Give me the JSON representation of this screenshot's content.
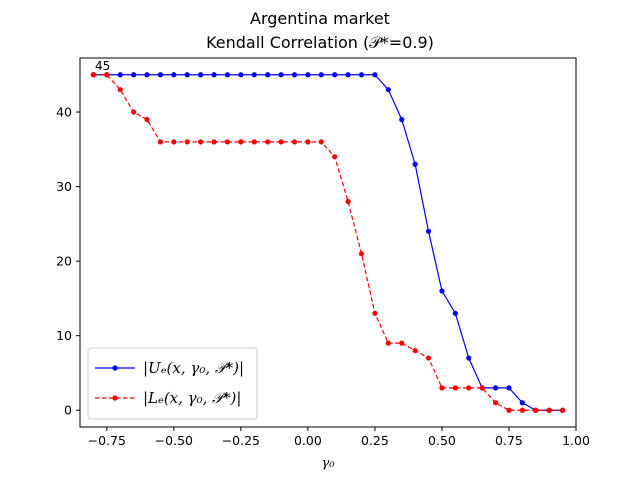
{
  "chart_data": {
    "type": "line",
    "title": "Argentina market",
    "subtitle": "Kendall Correlation (𝒫*=0.9)",
    "xlabel": "γ₀",
    "ylabel": "",
    "xlim": [
      -0.85,
      1.0
    ],
    "ylim": [
      -2.25,
      47.25
    ],
    "xticks": [
      -0.75,
      -0.5,
      -0.25,
      0.0,
      0.25,
      0.5,
      0.75,
      1.0
    ],
    "xtick_labels": [
      "−0.75",
      "−0.50",
      "−0.25",
      "0.00",
      "0.25",
      "0.50",
      "0.75",
      "1.00"
    ],
    "yticks": [
      0,
      10,
      20,
      30,
      40
    ],
    "ytick_labels": [
      "0",
      "10",
      "20",
      "30",
      "40"
    ],
    "grid": false,
    "legend_position": "lower-left",
    "annotation": {
      "text": "45",
      "x": -0.8,
      "y": 45
    },
    "x": [
      -0.8,
      -0.75,
      -0.7,
      -0.65,
      -0.6,
      -0.55,
      -0.5,
      -0.45,
      -0.4,
      -0.35,
      -0.3,
      -0.25,
      -0.2,
      -0.15,
      -0.1,
      -0.05,
      0.0,
      0.05,
      0.1,
      0.15,
      0.2,
      0.25,
      0.3,
      0.35,
      0.4,
      0.45,
      0.5,
      0.55,
      0.6,
      0.65,
      0.7,
      0.75,
      0.8,
      0.85,
      0.9,
      0.95
    ],
    "series": [
      {
        "name": "|Uₑ(x, γ₀, 𝒫*)|",
        "color": "#0000ff",
        "linestyle": "solid",
        "values": [
          45,
          45,
          45,
          45,
          45,
          45,
          45,
          45,
          45,
          45,
          45,
          45,
          45,
          45,
          45,
          45,
          45,
          45,
          45,
          45,
          45,
          45,
          43,
          39,
          33,
          24,
          16,
          13,
          7,
          3,
          3,
          3,
          1,
          0,
          0,
          0
        ]
      },
      {
        "name": "|Lₑ(x, γ₀, 𝒫*)|",
        "color": "#ff0000",
        "linestyle": "dashed",
        "values": [
          45,
          45,
          43,
          40,
          39,
          36,
          36,
          36,
          36,
          36,
          36,
          36,
          36,
          36,
          36,
          36,
          36,
          36,
          34,
          28,
          21,
          13,
          9,
          9,
          8,
          7,
          3,
          3,
          3,
          3,
          1,
          0,
          0,
          0,
          0,
          0
        ]
      }
    ]
  }
}
